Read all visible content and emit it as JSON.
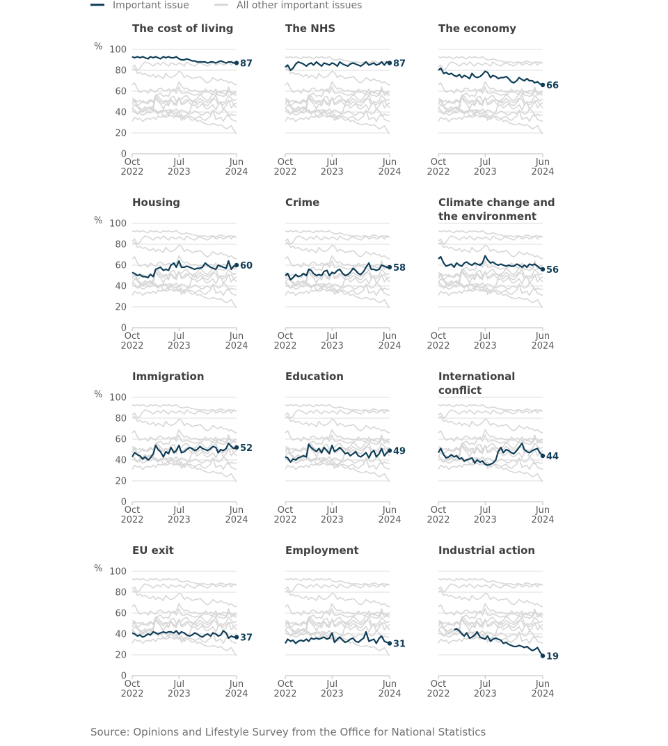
{
  "legend": {
    "important_label": "Important issue",
    "other_label": "All other important issues"
  },
  "source": "Source: Opinions and Lifestyle Survey from the Office for National Statistics",
  "colors": {
    "highlight": "#0f3d57",
    "background_series": "#d7d7d7",
    "grid": "#dddddd",
    "axis": "#bdbdbd"
  },
  "chart_data": {
    "type": "line",
    "y_unit": "%",
    "ylim": [
      0,
      100
    ],
    "yticks": [
      0,
      20,
      40,
      60,
      80,
      100
    ],
    "xlim": [
      "2022-10",
      "2024-06"
    ],
    "xticks": [
      {
        "date": "2022-10",
        "label_top": "Oct",
        "label_bottom": "2022"
      },
      {
        "date": "2023-07",
        "label_top": "Jul",
        "label_bottom": "2023"
      },
      {
        "date": "2024-06",
        "label_top": "Jun",
        "label_bottom": "2024"
      }
    ],
    "x": [
      "2022-10-01",
      "2022-10-15",
      "2022-11-01",
      "2022-11-15",
      "2022-12-01",
      "2022-12-15",
      "2023-01-01",
      "2023-01-15",
      "2023-02-01",
      "2023-02-15",
      "2023-03-01",
      "2023-03-15",
      "2023-04-01",
      "2023-04-15",
      "2023-05-01",
      "2023-05-15",
      "2023-06-01",
      "2023-06-15",
      "2023-07-01",
      "2023-07-15",
      "2023-08-01",
      "2023-08-15",
      "2023-09-01",
      "2023-09-15",
      "2023-10-01",
      "2023-10-15",
      "2023-11-01",
      "2023-11-15",
      "2023-12-01",
      "2023-12-15",
      "2024-01-01",
      "2024-01-15",
      "2024-02-01",
      "2024-02-15",
      "2024-03-01",
      "2024-03-15",
      "2024-04-01",
      "2024-04-15",
      "2024-05-01",
      "2024-05-15",
      "2024-06-01"
    ],
    "series": [
      {
        "name": "The cost of living",
        "end_label": "87",
        "values": [
          93,
          92,
          93,
          92,
          93,
          92,
          91,
          93,
          92,
          93,
          92,
          91,
          93,
          92,
          93,
          92,
          92,
          93,
          91,
          90,
          90,
          91,
          90,
          89,
          89,
          88,
          88,
          88,
          88,
          87,
          88,
          88,
          87,
          88,
          89,
          88,
          87,
          88,
          88,
          87,
          87
        ]
      },
      {
        "name": "The NHS",
        "end_label": "87",
        "values": [
          83,
          85,
          80,
          82,
          86,
          88,
          87,
          86,
          84,
          86,
          87,
          85,
          88,
          86,
          84,
          87,
          86,
          85,
          87,
          86,
          84,
          88,
          86,
          85,
          84,
          86,
          87,
          86,
          85,
          84,
          86,
          88,
          85,
          86,
          87,
          85,
          86,
          88,
          85,
          88,
          87
        ]
      },
      {
        "name": "The economy",
        "end_label": "66",
        "values": [
          80,
          82,
          77,
          78,
          76,
          77,
          75,
          74,
          76,
          73,
          75,
          74,
          72,
          77,
          74,
          73,
          74,
          76,
          79,
          78,
          73,
          75,
          74,
          72,
          73,
          73,
          74,
          72,
          69,
          68,
          70,
          73,
          71,
          70,
          72,
          70,
          70,
          68,
          69,
          67,
          66
        ]
      },
      {
        "name": "Housing",
        "end_label": "60",
        "values": [
          53,
          52,
          50,
          51,
          49,
          49,
          48,
          51,
          49,
          56,
          57,
          58,
          55,
          56,
          55,
          60,
          62,
          58,
          64,
          58,
          58,
          59,
          58,
          57,
          56,
          57,
          57,
          58,
          62,
          60,
          58,
          57,
          56,
          60,
          59,
          58,
          57,
          64,
          56,
          59,
          60
        ]
      },
      {
        "name": "Crime",
        "end_label": "58",
        "values": [
          50,
          52,
          46,
          48,
          51,
          49,
          50,
          52,
          50,
          56,
          55,
          52,
          50,
          51,
          50,
          54,
          55,
          50,
          53,
          52,
          55,
          56,
          52,
          50,
          51,
          53,
          57,
          55,
          52,
          51,
          54,
          58,
          62,
          56,
          56,
          55,
          56,
          60,
          59,
          58,
          58
        ]
      },
      {
        "name": "Climate change and the environment",
        "end_label": "56",
        "values": [
          66,
          68,
          62,
          59,
          60,
          61,
          58,
          62,
          60,
          59,
          62,
          63,
          61,
          60,
          62,
          61,
          60,
          62,
          69,
          65,
          62,
          63,
          61,
          60,
          61,
          60,
          59,
          60,
          59,
          59,
          61,
          60,
          58,
          60,
          58,
          61,
          60,
          61,
          59,
          57,
          56
        ]
      },
      {
        "name": "Immigration",
        "end_label": "52",
        "values": [
          43,
          47,
          45,
          44,
          41,
          43,
          40,
          42,
          46,
          54,
          50,
          48,
          43,
          48,
          46,
          52,
          47,
          49,
          54,
          47,
          48,
          50,
          52,
          51,
          49,
          50,
          53,
          51,
          50,
          49,
          51,
          53,
          52,
          47,
          50,
          49,
          51,
          56,
          53,
          51,
          52
        ]
      },
      {
        "name": "Education",
        "end_label": "49",
        "values": [
          43,
          42,
          38,
          41,
          40,
          42,
          43,
          44,
          43,
          55,
          52,
          50,
          48,
          51,
          47,
          52,
          49,
          46,
          54,
          48,
          50,
          52,
          49,
          46,
          47,
          44,
          46,
          48,
          44,
          43,
          45,
          47,
          42,
          47,
          49,
          43,
          46,
          51,
          44,
          47,
          49
        ]
      },
      {
        "name": "International conflict",
        "end_label": "44",
        "values": [
          47,
          51,
          45,
          42,
          43,
          45,
          43,
          44,
          41,
          42,
          39,
          40,
          41,
          42,
          37,
          40,
          38,
          39,
          36,
          35,
          36,
          37,
          40,
          48,
          52,
          47,
          50,
          49,
          47,
          46,
          49,
          52,
          56,
          50,
          48,
          47,
          49,
          50,
          51,
          47,
          44
        ]
      },
      {
        "name": "EU exit",
        "end_label": "37",
        "values": [
          41,
          40,
          38,
          39,
          37,
          38,
          40,
          39,
          42,
          41,
          40,
          41,
          42,
          41,
          42,
          42,
          41,
          43,
          40,
          42,
          41,
          39,
          38,
          39,
          41,
          40,
          38,
          37,
          39,
          40,
          38,
          41,
          40,
          38,
          39,
          43,
          41,
          36,
          38,
          37,
          37
        ]
      },
      {
        "name": "Employment",
        "end_label": "31",
        "values": [
          31,
          35,
          33,
          34,
          31,
          33,
          34,
          33,
          35,
          33,
          36,
          35,
          36,
          35,
          36,
          37,
          35,
          36,
          41,
          32,
          35,
          37,
          34,
          32,
          33,
          35,
          36,
          33,
          32,
          34,
          36,
          42,
          33,
          34,
          35,
          31,
          36,
          38,
          33,
          32,
          31
        ]
      },
      {
        "name": "Industrial action",
        "end_label": "19",
        "values": [
          null,
          null,
          null,
          null,
          null,
          null,
          44,
          45,
          43,
          40,
          38,
          41,
          36,
          37,
          39,
          42,
          37,
          36,
          35,
          38,
          33,
          35,
          36,
          35,
          34,
          31,
          32,
          30,
          29,
          28,
          28,
          29,
          28,
          27,
          28,
          26,
          24,
          25,
          27,
          23,
          19
        ]
      }
    ]
  }
}
